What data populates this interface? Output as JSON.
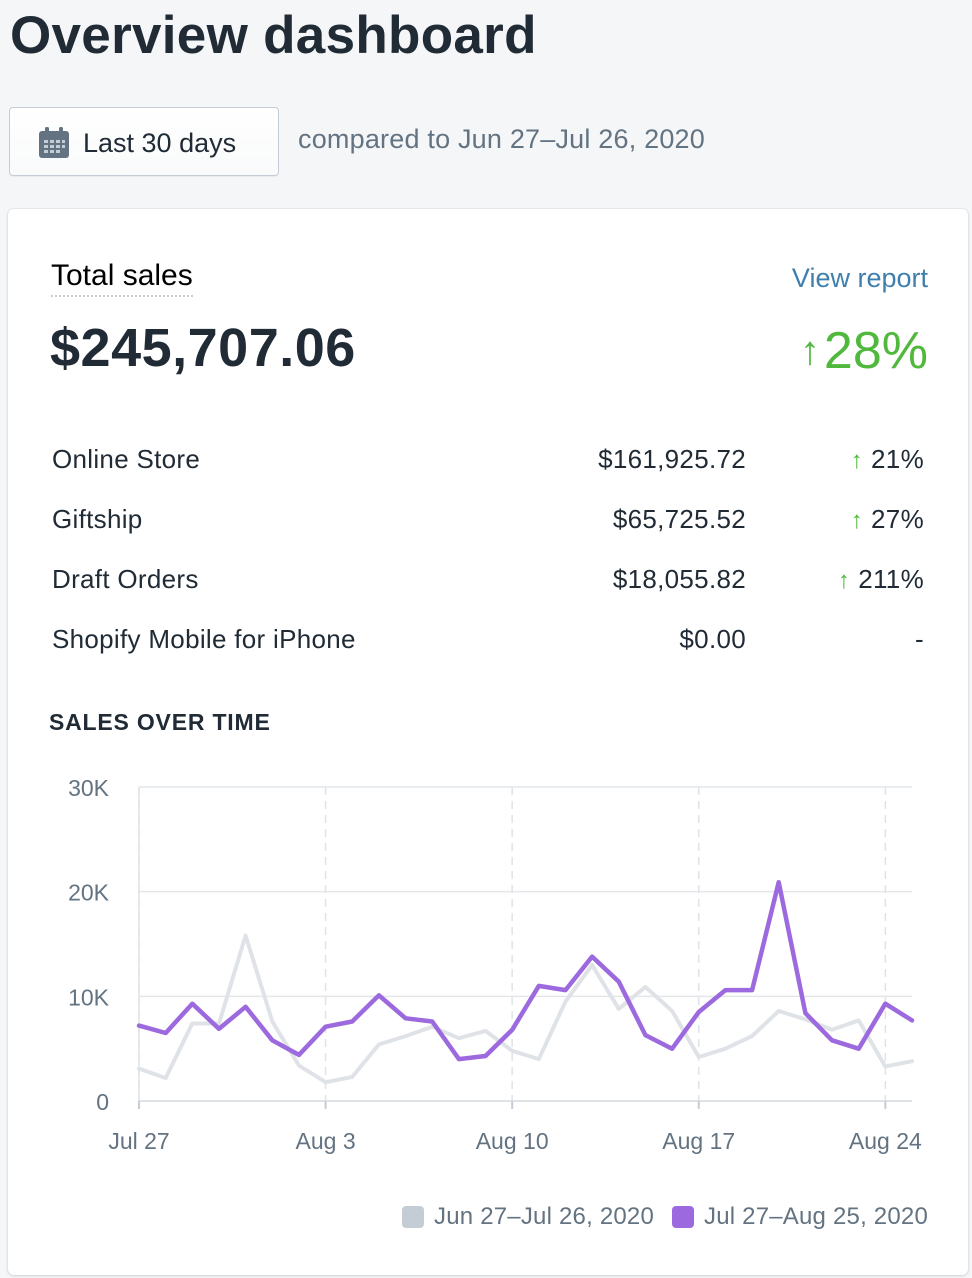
{
  "page": {
    "title": "Overview dashboard"
  },
  "filter": {
    "date_range_label": "Last 30 days",
    "icon": "calendar-icon",
    "comparison_text": "compared to Jun 27–Jul 26, 2020"
  },
  "card": {
    "title": "Total sales",
    "view_report_label": "View report",
    "total_value": "$245,707.06",
    "total_change": "28%",
    "breakdown": [
      {
        "name": "Online Store",
        "value": "$161,925.72",
        "change": "21%",
        "up": true
      },
      {
        "name": "Giftship",
        "value": "$65,725.52",
        "change": "27%",
        "up": true
      },
      {
        "name": "Draft Orders",
        "value": "$18,055.82",
        "change": "211%",
        "up": true
      },
      {
        "name": "Shopify Mobile for iPhone",
        "value": "$0.00",
        "change": "-",
        "up": false
      }
    ],
    "chart_section_label": "SALES OVER TIME"
  },
  "colors": {
    "accent_up": "#50b83c",
    "link": "#3f7fae",
    "current_series": "#9c6ade",
    "previous_series": "#dfe3e8"
  },
  "chart_data": {
    "type": "line",
    "title": "SALES OVER TIME",
    "x_tick_labels": [
      "Jul 27",
      "Aug 3",
      "Aug 10",
      "Aug 17",
      "Aug 24"
    ],
    "x_tick_positions": [
      0,
      7,
      14,
      21,
      28
    ],
    "y_tick_labels": [
      "0",
      "10K",
      "20K",
      "30K"
    ],
    "y_ticks": [
      0,
      10000,
      20000,
      30000
    ],
    "ylim": [
      0,
      30000
    ],
    "xlim": [
      0,
      29
    ],
    "grid": true,
    "legend_position": "bottom-right",
    "series": [
      {
        "name": "Jun 27–Jul 26, 2020",
        "color": "#dfe3e8",
        "values": [
          3100,
          2200,
          7400,
          7400,
          15800,
          7600,
          3400,
          1800,
          2300,
          5400,
          6200,
          7100,
          6000,
          6700,
          4800,
          4000,
          9500,
          13000,
          8800,
          10900,
          8600,
          4200,
          5000,
          6200,
          8600,
          7800,
          6800,
          7700,
          3300,
          3800
        ]
      },
      {
        "name": "Jul 27–Aug 25, 2020",
        "color": "#9c6ade",
        "values": [
          7200,
          6500,
          9300,
          6900,
          9000,
          5800,
          4400,
          7100,
          7600,
          10100,
          7900,
          7600,
          4000,
          4300,
          6800,
          11000,
          10600,
          13800,
          11400,
          6300,
          5000,
          8500,
          10600,
          10600,
          20900,
          8400,
          5800,
          5000,
          9300,
          7700
        ]
      }
    ]
  }
}
